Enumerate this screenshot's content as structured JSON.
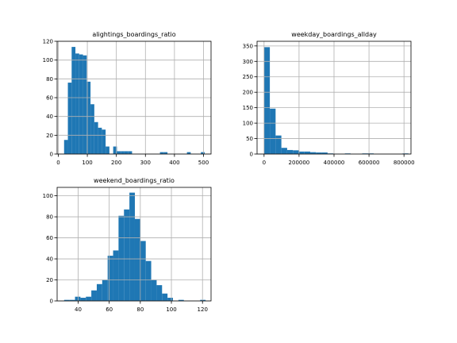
{
  "colors": {
    "bar": "#1f77b4",
    "grid": "#b0b0b0",
    "axis": "#000000",
    "background": "#ffffff"
  },
  "chart_data": [
    {
      "type": "bar",
      "title": "alightings_boardings_ratio",
      "xlabel": "",
      "ylabel": "",
      "xlim": [
        -4,
        526
      ],
      "ylim": [
        0,
        120
      ],
      "grid": true,
      "xticks": [
        0,
        100,
        200,
        300,
        400,
        500
      ],
      "yticks": [
        0,
        20,
        40,
        60,
        80,
        100,
        120
      ],
      "bins": [
        {
          "start": 20,
          "end": 33,
          "count": 15
        },
        {
          "start": 33,
          "end": 46,
          "count": 76
        },
        {
          "start": 46,
          "end": 59,
          "count": 114
        },
        {
          "start": 59,
          "end": 72,
          "count": 107
        },
        {
          "start": 72,
          "end": 85,
          "count": 106
        },
        {
          "start": 85,
          "end": 98,
          "count": 105
        },
        {
          "start": 98,
          "end": 111,
          "count": 77
        },
        {
          "start": 111,
          "end": 124,
          "count": 53
        },
        {
          "start": 124,
          "end": 137,
          "count": 34
        },
        {
          "start": 137,
          "end": 150,
          "count": 28
        },
        {
          "start": 150,
          "end": 163,
          "count": 26
        },
        {
          "start": 163,
          "end": 176,
          "count": 8
        },
        {
          "start": 189,
          "end": 202,
          "count": 8
        },
        {
          "start": 202,
          "end": 215,
          "count": 3
        },
        {
          "start": 215,
          "end": 228,
          "count": 3
        },
        {
          "start": 228,
          "end": 241,
          "count": 3
        },
        {
          "start": 241,
          "end": 254,
          "count": 3
        },
        {
          "start": 350,
          "end": 363,
          "count": 2
        },
        {
          "start": 363,
          "end": 376,
          "count": 2
        },
        {
          "start": 443,
          "end": 456,
          "count": 2
        },
        {
          "start": 491,
          "end": 504,
          "count": 2
        }
      ]
    },
    {
      "type": "bar",
      "title": "weekday_boardings_allday",
      "xlabel": "",
      "ylabel": "",
      "xlim": [
        -40000,
        840000
      ],
      "ylim": [
        0,
        365
      ],
      "grid": true,
      "xticks": [
        0,
        200000,
        400000,
        600000,
        800000
      ],
      "yticks": [
        0,
        50,
        100,
        150,
        200,
        250,
        300,
        350
      ],
      "bins": [
        {
          "start": 0,
          "end": 33000,
          "count": 346
        },
        {
          "start": 33000,
          "end": 66000,
          "count": 147
        },
        {
          "start": 66000,
          "end": 99000,
          "count": 60
        },
        {
          "start": 99000,
          "end": 132000,
          "count": 20
        },
        {
          "start": 132000,
          "end": 165000,
          "count": 13
        },
        {
          "start": 165000,
          "end": 198000,
          "count": 12
        },
        {
          "start": 198000,
          "end": 231000,
          "count": 8
        },
        {
          "start": 231000,
          "end": 264000,
          "count": 8
        },
        {
          "start": 264000,
          "end": 297000,
          "count": 6
        },
        {
          "start": 297000,
          "end": 330000,
          "count": 5
        },
        {
          "start": 330000,
          "end": 363000,
          "count": 5
        },
        {
          "start": 363000,
          "end": 396000,
          "count": 2
        },
        {
          "start": 396000,
          "end": 429000,
          "count": 1
        },
        {
          "start": 462000,
          "end": 495000,
          "count": 2
        },
        {
          "start": 561000,
          "end": 594000,
          "count": 2
        },
        {
          "start": 594000,
          "end": 627000,
          "count": 2
        },
        {
          "start": 792000,
          "end": 825000,
          "count": 2
        }
      ]
    },
    {
      "type": "bar",
      "title": "weekend_boardings_ratio",
      "xlabel": "",
      "ylabel": "",
      "xlim": [
        26.5,
        125.5
      ],
      "ylim": [
        0,
        108
      ],
      "grid": true,
      "xticks": [
        40,
        60,
        80,
        100,
        120
      ],
      "yticks": [
        0,
        20,
        40,
        60,
        80,
        100
      ],
      "bins": [
        {
          "start": 31,
          "end": 34.5,
          "count": 1
        },
        {
          "start": 34.5,
          "end": 38,
          "count": 1
        },
        {
          "start": 38,
          "end": 41.5,
          "count": 4
        },
        {
          "start": 41.5,
          "end": 45,
          "count": 3
        },
        {
          "start": 45,
          "end": 48.5,
          "count": 4
        },
        {
          "start": 48.5,
          "end": 52,
          "count": 10
        },
        {
          "start": 52,
          "end": 55.5,
          "count": 16
        },
        {
          "start": 55.5,
          "end": 59,
          "count": 20
        },
        {
          "start": 59,
          "end": 62.5,
          "count": 43
        },
        {
          "start": 62.5,
          "end": 66,
          "count": 48
        },
        {
          "start": 66,
          "end": 69.5,
          "count": 81
        },
        {
          "start": 69.5,
          "end": 73,
          "count": 87
        },
        {
          "start": 73,
          "end": 76.5,
          "count": 103
        },
        {
          "start": 76.5,
          "end": 80,
          "count": 78
        },
        {
          "start": 80,
          "end": 83.5,
          "count": 57
        },
        {
          "start": 83.5,
          "end": 87,
          "count": 38
        },
        {
          "start": 87,
          "end": 90.5,
          "count": 20
        },
        {
          "start": 90.5,
          "end": 94,
          "count": 15
        },
        {
          "start": 94,
          "end": 97.5,
          "count": 7
        },
        {
          "start": 97.5,
          "end": 101,
          "count": 3
        },
        {
          "start": 104.5,
          "end": 108,
          "count": 1
        },
        {
          "start": 118.5,
          "end": 122,
          "count": 1
        }
      ]
    }
  ]
}
